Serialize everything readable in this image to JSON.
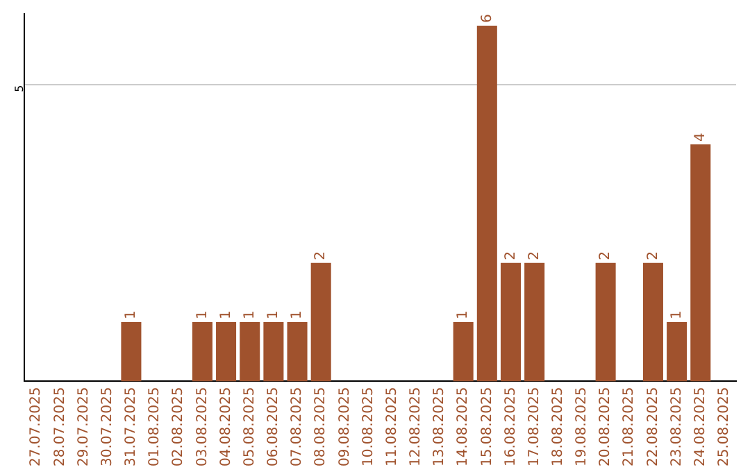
{
  "chart_data": {
    "type": "bar",
    "categories": [
      "27.07.2025",
      "28.07.2025",
      "29.07.2025",
      "30.07.2025",
      "31.07.2025",
      "01.08.2025",
      "02.08.2025",
      "03.08.2025",
      "04.08.2025",
      "05.08.2025",
      "06.08.2025",
      "07.08.2025",
      "08.08.2025",
      "09.08.2025",
      "10.08.2025",
      "11.08.2025",
      "12.08.2025",
      "13.08.2025",
      "14.08.2025",
      "15.08.2025",
      "16.08.2025",
      "17.08.2025",
      "18.08.2025",
      "19.08.2025",
      "20.08.2025",
      "21.08.2025",
      "22.08.2025",
      "23.08.2025",
      "24.08.2025",
      "25.08.2025"
    ],
    "values": [
      0,
      0,
      0,
      0,
      1,
      0,
      0,
      1,
      1,
      1,
      1,
      1,
      2,
      0,
      0,
      0,
      0,
      0,
      1,
      6,
      2,
      2,
      0,
      0,
      2,
      0,
      2,
      1,
      4,
      0
    ],
    "value_labels": [
      null,
      null,
      null,
      null,
      "1",
      null,
      null,
      "1",
      "1",
      "1",
      "1",
      "1",
      "2",
      null,
      null,
      null,
      null,
      null,
      "1",
      "6",
      "2",
      "2",
      null,
      null,
      "2",
      null,
      "2",
      "1",
      "4",
      null
    ],
    "color": "#a0522d",
    "ylim": [
      0,
      6.2
    ],
    "yticks": [
      5
    ],
    "grid": "y",
    "legend": false
  }
}
